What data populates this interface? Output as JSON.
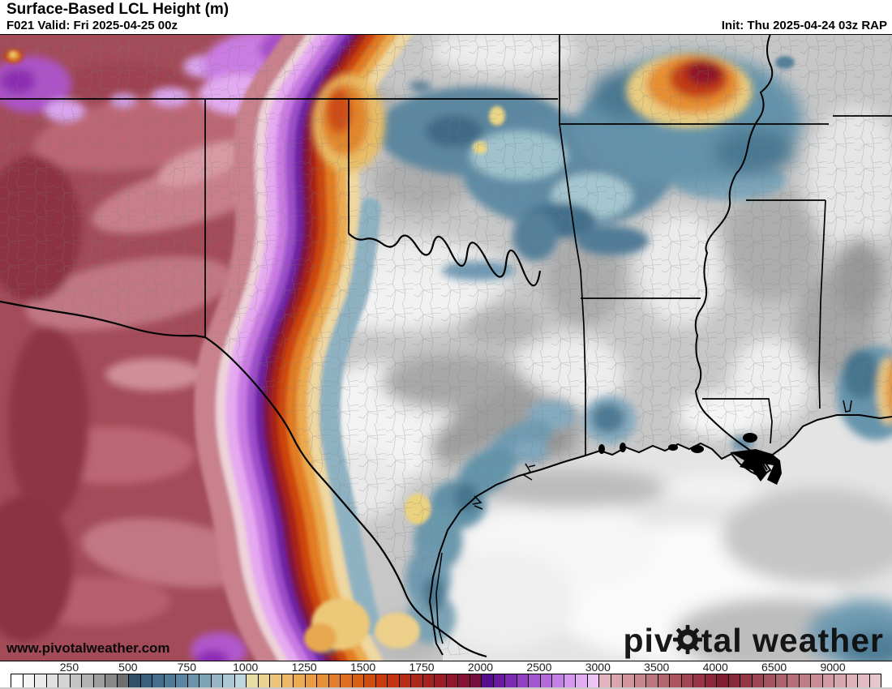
{
  "header": {
    "title": "Surface-Based LCL Height (m)",
    "forecast_valid": "F021 Valid: Fri 2025-04-25 00z",
    "init": "Init: Thu 2025-04-24 03z RAP"
  },
  "map": {
    "watermark": "www.pivotalweather.com",
    "logo": {
      "text_before": "piv",
      "text_after": "tal weather",
      "gear_icon": "gear-icon"
    }
  },
  "colorbar": {
    "ticks": [
      "250",
      "500",
      "750",
      "1000",
      "1250",
      "1500",
      "1750",
      "2000",
      "2500",
      "3000",
      "3500",
      "4000",
      "6500",
      "9000"
    ],
    "cells": [
      "#ffffff",
      "#f5f5f5",
      "#ebebeb",
      "#e0e0e0",
      "#d4d4d4",
      "#c4c4c4",
      "#b2b2b2",
      "#9e9e9e",
      "#888888",
      "#6f6f6f",
      "#30506a",
      "#3a5f7c",
      "#456e8c",
      "#4f7b98",
      "#5b86a2",
      "#6b94ac",
      "#7ea4b8",
      "#94b6c6",
      "#abc8d4",
      "#c0d6de",
      "#e6dda4",
      "#ead291",
      "#ecc57b",
      "#edb867",
      "#ecaa54",
      "#ea9c45",
      "#e78e38",
      "#e37f2c",
      "#de6f20",
      "#d85f15",
      "#d14d0e",
      "#c93b0e",
      "#c13312",
      "#b82d16",
      "#ae271b",
      "#a42220",
      "#9a1c26",
      "#8f172d",
      "#831235",
      "#770e3d",
      "#560e8c",
      "#691aa0",
      "#7d2bb2",
      "#9140c2",
      "#a455d0",
      "#b56adc",
      "#c581e5",
      "#d598ec",
      "#e2aef2",
      "#ecc4f5",
      "#e2b5be",
      "#d9a5ae",
      "#d0959e",
      "#c7858e",
      "#be757e",
      "#b5656e",
      "#ac5560",
      "#a34552",
      "#9a3546",
      "#8f273a",
      "#801d2e",
      "#892a3a",
      "#923846",
      "#9b4652",
      "#a4545e",
      "#ad626c",
      "#b6707a",
      "#bf7e88",
      "#c88c96",
      "#d19aa4",
      "#d8a8b0",
      "#ddb2ba",
      "#e2bcc4",
      "#e7c6cc"
    ],
    "tick_text_color": "#1c1c1c"
  },
  "palette": {
    "low_gray": "#c7c7c7",
    "moist_blue": "#5b86a2",
    "lcl_yellow": "#ecd084",
    "lcl_orange": "#e37f2c",
    "lcl_red": "#c13312",
    "lcl_purple": "#7d2bb2",
    "lcl_magenta": "#c97ae2",
    "dry_maroon": "#a34b58",
    "gulf_light": "#ececec"
  }
}
